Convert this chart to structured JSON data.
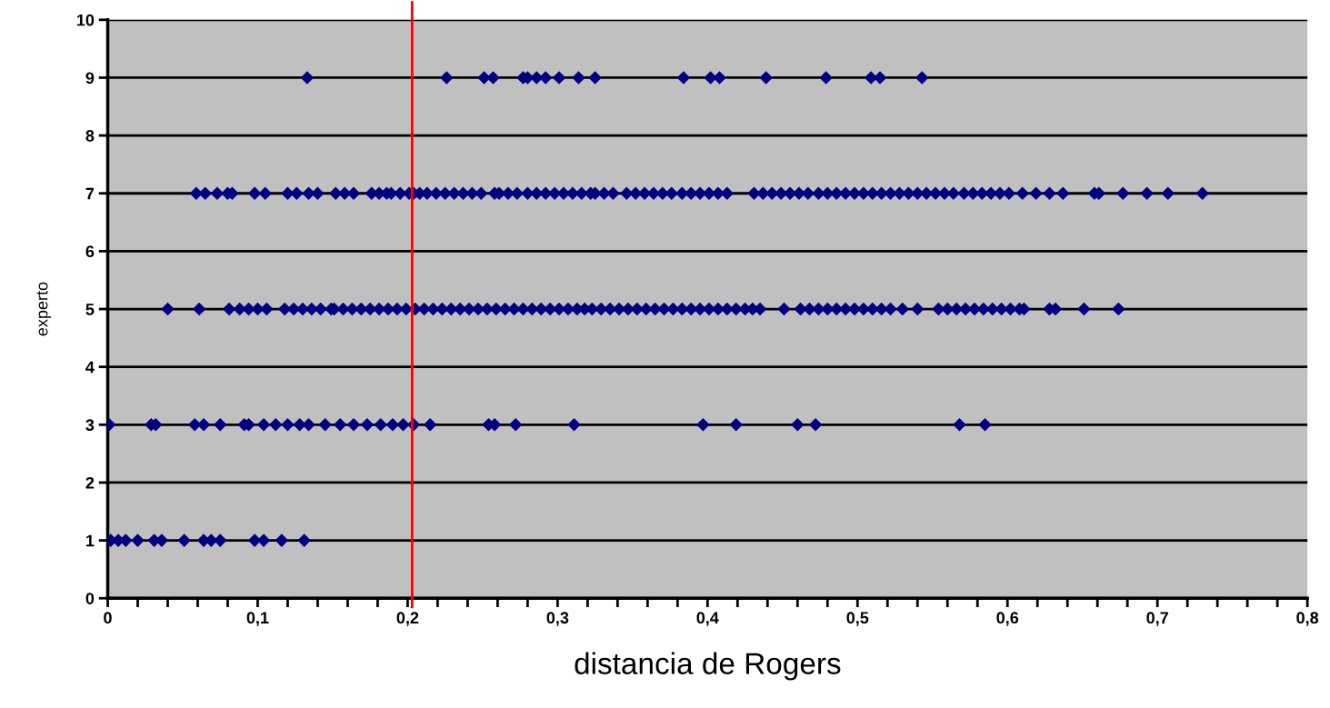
{
  "chart_data": {
    "type": "scatter",
    "xlabel": "distancia de Rogers",
    "ylabel": "experto",
    "xlim": [
      0,
      0.8
    ],
    "ylim": [
      0,
      10
    ],
    "xticks": [
      0,
      {
        "value": 0.02,
        "label": null
      },
      {
        "value": 0.04,
        "label": null
      },
      {
        "value": 0.06,
        "label": null
      },
      {
        "value": 0.08,
        "label": null
      },
      {
        "value": 0.1,
        "label": "0,1"
      },
      {
        "value": 0.12,
        "label": null
      },
      {
        "value": 0.14,
        "label": null
      },
      {
        "value": 0.16,
        "label": null
      },
      {
        "value": 0.18,
        "label": null
      },
      {
        "value": 0.2,
        "label": "0,2"
      },
      {
        "value": 0.22,
        "label": null
      },
      {
        "value": 0.24,
        "label": null
      },
      {
        "value": 0.26,
        "label": null
      },
      {
        "value": 0.28,
        "label": null
      },
      {
        "value": 0.3,
        "label": "0,3"
      },
      {
        "value": 0.32,
        "label": null
      },
      {
        "value": 0.34,
        "label": null
      },
      {
        "value": 0.36,
        "label": null
      },
      {
        "value": 0.38,
        "label": null
      },
      {
        "value": 0.4,
        "label": "0,4"
      },
      {
        "value": 0.42,
        "label": null
      },
      {
        "value": 0.44,
        "label": null
      },
      {
        "value": 0.46,
        "label": null
      },
      {
        "value": 0.48,
        "label": null
      },
      {
        "value": 0.5,
        "label": "0,5"
      },
      {
        "value": 0.52,
        "label": null
      },
      {
        "value": 0.54,
        "label": null
      },
      {
        "value": 0.56,
        "label": null
      },
      {
        "value": 0.58,
        "label": null
      },
      {
        "value": 0.6,
        "label": "0,6"
      },
      {
        "value": 0.62,
        "label": null
      },
      {
        "value": 0.64,
        "label": null
      },
      {
        "value": 0.66,
        "label": null
      },
      {
        "value": 0.68,
        "label": null
      },
      {
        "value": 0.7,
        "label": "0,7"
      },
      {
        "value": 0.72,
        "label": null
      },
      {
        "value": 0.74,
        "label": null
      },
      {
        "value": 0.76,
        "label": null
      },
      {
        "value": 0.78,
        "label": null
      },
      {
        "value": 0.8,
        "label": "0,8"
      }
    ],
    "yticks": [
      0,
      1,
      2,
      3,
      4,
      5,
      6,
      7,
      8,
      9,
      10
    ],
    "grid": "y",
    "marker": "diamond",
    "ref_lines": [
      {
        "axis": "x",
        "value": 0.203,
        "color": "#ff0000"
      }
    ],
    "series": [
      {
        "color": "#000080",
        "x": [
          0.133,
          0.226,
          0.251,
          0.257,
          0.277,
          0.28,
          0.286,
          0.292,
          0.301,
          0.314,
          0.325,
          0.384,
          0.402,
          0.408,
          0.439,
          0.479,
          0.509,
          0.515,
          0.543
        ],
        "values": [
          9,
          9,
          9,
          9,
          9,
          9,
          9,
          9,
          9,
          9,
          9,
          9,
          9,
          9,
          9,
          9,
          9,
          9,
          9
        ]
      },
      {
        "color": "#000080",
        "x": [
          0.059,
          0.065,
          0.073,
          0.08,
          0.083,
          0.098,
          0.105,
          0.12,
          0.126,
          0.134,
          0.14,
          0.152,
          0.158,
          0.164,
          0.176,
          0.181,
          0.186,
          0.189,
          0.195,
          0.201,
          0.204,
          0.208,
          0.213,
          0.219,
          0.225,
          0.231,
          0.237,
          0.243,
          0.249,
          0.258,
          0.261,
          0.267,
          0.273,
          0.28,
          0.286,
          0.292,
          0.298,
          0.304,
          0.31,
          0.316,
          0.322,
          0.325,
          0.331,
          0.337,
          0.346,
          0.352,
          0.358,
          0.364,
          0.37,
          0.376,
          0.383,
          0.389,
          0.395,
          0.401,
          0.407,
          0.413,
          0.431,
          0.437,
          0.443,
          0.449,
          0.455,
          0.461,
          0.467,
          0.474,
          0.48,
          0.486,
          0.492,
          0.498,
          0.504,
          0.51,
          0.516,
          0.522,
          0.528,
          0.534,
          0.54,
          0.546,
          0.552,
          0.558,
          0.564,
          0.571,
          0.577,
          0.583,
          0.589,
          0.595,
          0.601,
          0.61,
          0.619,
          0.628,
          0.637,
          0.658,
          0.661,
          0.677,
          0.693,
          0.707,
          0.73
        ],
        "values": [
          7,
          7,
          7,
          7,
          7,
          7,
          7,
          7,
          7,
          7,
          7,
          7,
          7,
          7,
          7,
          7,
          7,
          7,
          7,
          7,
          7,
          7,
          7,
          7,
          7,
          7,
          7,
          7,
          7,
          7,
          7,
          7,
          7,
          7,
          7,
          7,
          7,
          7,
          7,
          7,
          7,
          7,
          7,
          7,
          7,
          7,
          7,
          7,
          7,
          7,
          7,
          7,
          7,
          7,
          7,
          7,
          7,
          7,
          7,
          7,
          7,
          7,
          7,
          7,
          7,
          7,
          7,
          7,
          7,
          7,
          7,
          7,
          7,
          7,
          7,
          7,
          7,
          7,
          7,
          7,
          7,
          7,
          7,
          7,
          7,
          7,
          7,
          7,
          7,
          7,
          7,
          7,
          7,
          7,
          7
        ]
      },
      {
        "color": "#000080",
        "x": [
          0.04,
          0.061,
          0.081,
          0.088,
          0.094,
          0.1,
          0.106,
          0.118,
          0.124,
          0.13,
          0.136,
          0.142,
          0.149,
          0.151,
          0.157,
          0.163,
          0.169,
          0.175,
          0.181,
          0.187,
          0.193,
          0.199,
          0.205,
          0.211,
          0.217,
          0.223,
          0.229,
          0.235,
          0.241,
          0.247,
          0.253,
          0.259,
          0.265,
          0.271,
          0.277,
          0.283,
          0.289,
          0.295,
          0.301,
          0.307,
          0.313,
          0.318,
          0.323,
          0.329,
          0.335,
          0.341,
          0.347,
          0.353,
          0.359,
          0.365,
          0.371,
          0.377,
          0.383,
          0.389,
          0.395,
          0.401,
          0.407,
          0.413,
          0.419,
          0.425,
          0.43,
          0.435,
          0.451,
          0.462,
          0.468,
          0.474,
          0.48,
          0.486,
          0.492,
          0.498,
          0.504,
          0.51,
          0.516,
          0.522,
          0.53,
          0.54,
          0.554,
          0.56,
          0.566,
          0.572,
          0.578,
          0.584,
          0.59,
          0.596,
          0.602,
          0.608,
          0.611,
          0.628,
          0.632,
          0.651,
          0.674
        ],
        "values": [
          5,
          5,
          5,
          5,
          5,
          5,
          5,
          5,
          5,
          5,
          5,
          5,
          5,
          5,
          5,
          5,
          5,
          5,
          5,
          5,
          5,
          5,
          5,
          5,
          5,
          5,
          5,
          5,
          5,
          5,
          5,
          5,
          5,
          5,
          5,
          5,
          5,
          5,
          5,
          5,
          5,
          5,
          5,
          5,
          5,
          5,
          5,
          5,
          5,
          5,
          5,
          5,
          5,
          5,
          5,
          5,
          5,
          5,
          5,
          5,
          5,
          5,
          5,
          5,
          5,
          5,
          5,
          5,
          5,
          5,
          5,
          5,
          5,
          5,
          5,
          5,
          5,
          5,
          5,
          5,
          5,
          5,
          5,
          5,
          5,
          5,
          5,
          5,
          5,
          5,
          5
        ]
      },
      {
        "color": "#000080",
        "x": [
          0.001,
          0.029,
          0.032,
          0.058,
          0.064,
          0.075,
          0.091,
          0.094,
          0.104,
          0.112,
          0.12,
          0.128,
          0.134,
          0.145,
          0.155,
          0.164,
          0.173,
          0.182,
          0.19,
          0.197,
          0.204,
          0.215,
          0.254,
          0.258,
          0.272,
          0.311,
          0.397,
          0.419,
          0.46,
          0.472,
          0.568,
          0.585
        ],
        "values": [
          3,
          3,
          3,
          3,
          3,
          3,
          3,
          3,
          3,
          3,
          3,
          3,
          3,
          3,
          3,
          3,
          3,
          3,
          3,
          3,
          3,
          3,
          3,
          3,
          3,
          3,
          3,
          3,
          3,
          3,
          3,
          3
        ]
      },
      {
        "color": "#000080",
        "x": [
          0.002,
          0.007,
          0.012,
          0.02,
          0.031,
          0.036,
          0.051,
          0.064,
          0.069,
          0.075,
          0.098,
          0.104,
          0.116,
          0.131
        ],
        "values": [
          1,
          1,
          1,
          1,
          1,
          1,
          1,
          1,
          1,
          1,
          1,
          1,
          1,
          1
        ]
      }
    ]
  }
}
